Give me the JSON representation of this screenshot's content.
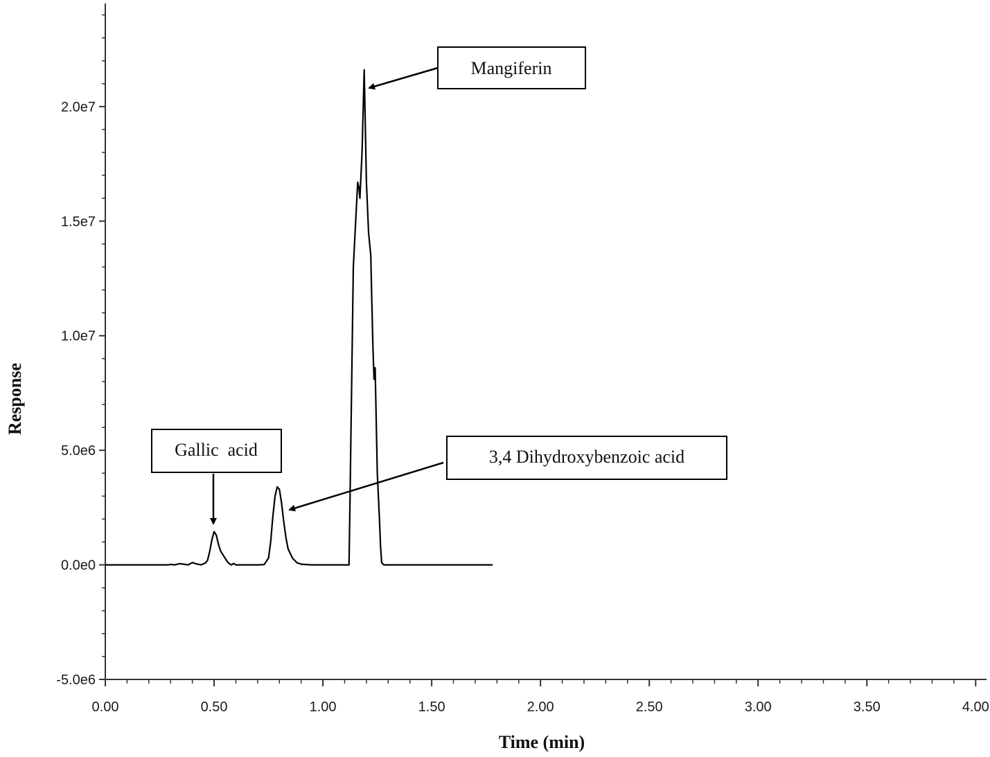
{
  "chart_data": {
    "type": "line",
    "xlabel": "Time (min)",
    "ylabel": "Response",
    "xlim": [
      0,
      4.05
    ],
    "ylim": [
      -5000000,
      24500000
    ],
    "x_ticks": [
      0,
      0.5,
      1,
      1.5,
      2,
      2.5,
      3,
      3.5,
      4
    ],
    "x_tick_labels": [
      "0.00",
      "0.50",
      "1.00",
      "1.50",
      "2.00",
      "2.50",
      "3.00",
      "3.50",
      "4.00"
    ],
    "y_ticks": [
      -5000000,
      0,
      5000000,
      10000000,
      15000000,
      20000000
    ],
    "y_tick_labels": [
      "-5.0e6",
      "0.0e0",
      "5.0e6",
      "1.0e7",
      "1.5e7",
      "2.0e7"
    ],
    "grid": false,
    "series": [
      {
        "x": [
          0.0,
          0.29,
          0.3,
          0.32,
          0.34,
          0.36,
          0.38,
          0.4,
          0.42,
          0.44,
          0.46,
          0.47,
          0.48,
          0.49,
          0.5,
          0.51,
          0.52,
          0.53,
          0.54,
          0.55,
          0.56,
          0.57,
          0.58,
          0.59,
          0.6,
          0.62,
          0.66,
          0.7,
          0.73,
          0.75,
          0.76,
          0.77,
          0.78,
          0.79,
          0.8,
          0.81,
          0.82,
          0.83,
          0.84,
          0.86,
          0.88,
          0.9,
          0.95,
          1.0,
          1.12,
          1.125,
          1.14,
          1.16,
          1.165,
          1.17,
          1.18,
          1.19,
          1.2,
          1.21,
          1.22,
          1.225,
          1.23,
          1.235,
          1.24,
          1.25,
          1.26,
          1.265,
          1.27,
          1.28,
          1.4,
          1.6,
          1.78
        ],
        "y": [
          0,
          0,
          20000,
          0,
          50000,
          30000,
          0,
          100000,
          40000,
          0,
          80000,
          200000,
          600000,
          1100000,
          1450000,
          1300000,
          900000,
          600000,
          450000,
          300000,
          150000,
          50000,
          0,
          60000,
          0,
          0,
          0,
          0,
          10000,
          300000,
          1000000,
          2100000,
          3000000,
          3400000,
          3300000,
          2700000,
          1900000,
          1200000,
          700000,
          300000,
          100000,
          30000,
          0,
          0,
          0,
          3000000,
          13000000,
          16700000,
          16500000,
          16000000,
          18000000,
          21600000,
          16700000,
          14500000,
          13500000,
          11500000,
          9500000,
          8100000,
          8600000,
          4000000,
          2000000,
          800000,
          100000,
          0,
          0,
          0,
          0
        ]
      }
    ],
    "annotations": [
      {
        "text": "Mangiferin",
        "x": 1.2,
        "y": 21600000
      },
      {
        "text": "Gallic  acid",
        "x": 0.5,
        "y": 1450000
      },
      {
        "text": "3,4 Dihydroxybenzoic acid",
        "x": 0.8,
        "y": 3400000
      }
    ]
  }
}
